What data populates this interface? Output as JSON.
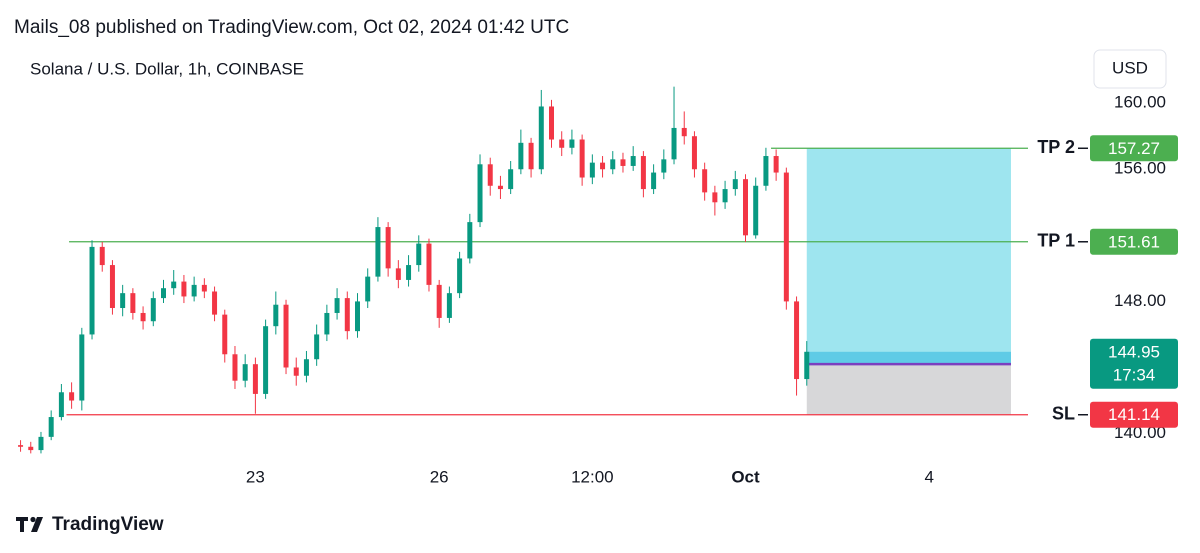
{
  "header": {
    "published": "Mails_08 published on TradingView.com, Oct 02, 2024 01:42 UTC",
    "brand": "TradingView"
  },
  "chart_data": {
    "type": "candlestick",
    "title": "Solana / U.S. Dollar, 1h, COINBASE",
    "currency": "USD",
    "up_color": "#089981",
    "down_color": "#f23645",
    "xlim": [
      -93,
      325
    ],
    "ylim": [
      138.4,
      161.1
    ],
    "xticks": [
      {
        "value": 0,
        "label": "23"
      },
      {
        "value": 72,
        "label": "26"
      },
      {
        "value": 132,
        "label": "12:00"
      },
      {
        "value": 192,
        "label": "Oct"
      },
      {
        "value": 264,
        "label": "4"
      }
    ],
    "yticks": [
      {
        "value": 140,
        "label": "140.00"
      },
      {
        "value": 148,
        "label": "148.00"
      },
      {
        "value": 156,
        "label": "156.00"
      },
      {
        "value": 160,
        "label": "160.00"
      }
    ],
    "x": [
      -92,
      -88,
      -84,
      -80,
      -76,
      -72,
      -68,
      -64,
      -60,
      -56,
      -52,
      -48,
      -44,
      -40,
      -36,
      -32,
      -28,
      -24,
      -20,
      -16,
      -12,
      -8,
      -4,
      0,
      4,
      8,
      12,
      16,
      20,
      24,
      28,
      32,
      36,
      40,
      44,
      48,
      52,
      56,
      60,
      64,
      68,
      72,
      76,
      80,
      84,
      88,
      92,
      96,
      100,
      104,
      108,
      112,
      116,
      120,
      124,
      128,
      132,
      136,
      140,
      144,
      148,
      152,
      156,
      160,
      164,
      168,
      172,
      176,
      180,
      184,
      188,
      192,
      196,
      200,
      204,
      208,
      212,
      216
    ],
    "open": [
      139.3,
      139.2,
      139.0,
      139.8,
      141.0,
      142.5,
      142.0,
      146.0,
      151.3,
      150.2,
      147.6,
      148.5,
      147.3,
      146.8,
      148.2,
      148.8,
      149.2,
      148.3,
      149.0,
      148.6,
      147.2,
      144.8,
      143.2,
      144.2,
      142.4,
      146.5,
      147.8,
      144.0,
      143.5,
      144.5,
      146.0,
      147.3,
      148.2,
      146.2,
      148.0,
      149.5,
      152.5,
      150.0,
      149.3,
      150.2,
      151.5,
      149.0,
      147.0,
      148.5,
      150.6,
      152.8,
      156.3,
      155.0,
      154.8,
      156.0,
      157.6,
      156.0,
      159.8,
      157.8,
      157.3,
      157.8,
      155.5,
      156.4,
      156.0,
      156.6,
      156.2,
      156.8,
      154.8,
      155.8,
      156.6,
      158.5,
      158.0,
      156.0,
      154.6,
      154.0,
      154.8,
      155.4,
      152.0,
      155.0,
      156.8,
      155.8,
      148.0,
      143.3
    ],
    "high": [
      139.6,
      139.5,
      140.1,
      141.4,
      143.0,
      143.1,
      146.4,
      151.7,
      151.6,
      150.5,
      149.0,
      148.8,
      147.7,
      148.6,
      149.3,
      149.9,
      149.6,
      149.5,
      149.4,
      148.9,
      147.5,
      145.3,
      144.8,
      144.6,
      146.9,
      148.6,
      148.1,
      144.6,
      145.0,
      146.6,
      147.8,
      148.8,
      148.6,
      148.5,
      150.0,
      153.1,
      152.8,
      150.5,
      150.8,
      152.0,
      151.8,
      149.3,
      148.9,
      151.0,
      153.3,
      156.9,
      156.7,
      155.6,
      156.5,
      158.4,
      157.9,
      160.8,
      160.2,
      158.3,
      158.4,
      158.1,
      156.9,
      156.8,
      157.1,
      157.0,
      157.4,
      157.1,
      156.3,
      157.2,
      161.0,
      159.5,
      158.3,
      156.4,
      155.0,
      155.3,
      155.9,
      155.7,
      155.5,
      157.3,
      157.2,
      156.1,
      148.3,
      145.6
    ],
    "low": [
      138.9,
      138.8,
      138.8,
      139.6,
      140.8,
      141.5,
      141.4,
      145.7,
      149.8,
      147.2,
      147.1,
      146.9,
      146.3,
      146.5,
      147.9,
      148.4,
      147.9,
      148.0,
      148.2,
      146.8,
      144.3,
      142.7,
      142.8,
      141.2,
      142.1,
      146.0,
      143.6,
      142.9,
      143.1,
      144.1,
      145.6,
      146.9,
      145.7,
      145.8,
      147.6,
      149.2,
      149.5,
      148.8,
      148.9,
      149.8,
      148.6,
      146.4,
      146.7,
      148.2,
      150.3,
      152.5,
      154.4,
      154.2,
      154.5,
      155.7,
      155.5,
      155.7,
      157.3,
      156.8,
      156.9,
      155.0,
      155.1,
      155.5,
      155.7,
      155.8,
      155.9,
      154.3,
      154.5,
      155.4,
      156.3,
      157.5,
      155.5,
      154.1,
      153.2,
      153.6,
      154.4,
      151.6,
      151.8,
      154.7,
      155.3,
      147.5,
      142.3,
      142.9
    ],
    "close": [
      139.2,
      139.0,
      139.8,
      141.0,
      142.5,
      142.0,
      146.0,
      151.3,
      150.2,
      147.6,
      148.5,
      147.3,
      146.8,
      148.2,
      148.8,
      149.2,
      148.3,
      149.0,
      148.6,
      147.2,
      144.8,
      143.2,
      144.2,
      142.4,
      146.5,
      147.8,
      144.0,
      143.5,
      144.5,
      146.0,
      147.3,
      148.2,
      146.2,
      148.0,
      149.5,
      152.5,
      150.0,
      149.3,
      150.2,
      151.5,
      149.0,
      147.0,
      148.5,
      150.6,
      152.8,
      156.3,
      155.0,
      154.8,
      156.0,
      157.6,
      156.0,
      159.8,
      157.8,
      157.3,
      157.8,
      155.5,
      156.4,
      156.0,
      156.6,
      156.2,
      156.8,
      154.8,
      155.8,
      156.6,
      158.5,
      158.0,
      156.0,
      154.6,
      154.0,
      154.8,
      155.4,
      152.0,
      155.0,
      156.8,
      155.8,
      148.0,
      143.3,
      144.95
    ],
    "countdown": "17:34",
    "levels": [
      {
        "label": "TP 2",
        "value": 157.27,
        "from": 202,
        "color": "#4caf50"
      },
      {
        "label": "TP 1",
        "value": 151.61,
        "from": -73,
        "color": "#4caf50"
      },
      {
        "label": "SL",
        "value": 141.14,
        "from": -74,
        "color": "#f23645"
      }
    ],
    "position": {
      "entry": 144.2,
      "x": [
        216,
        296
      ]
    }
  }
}
